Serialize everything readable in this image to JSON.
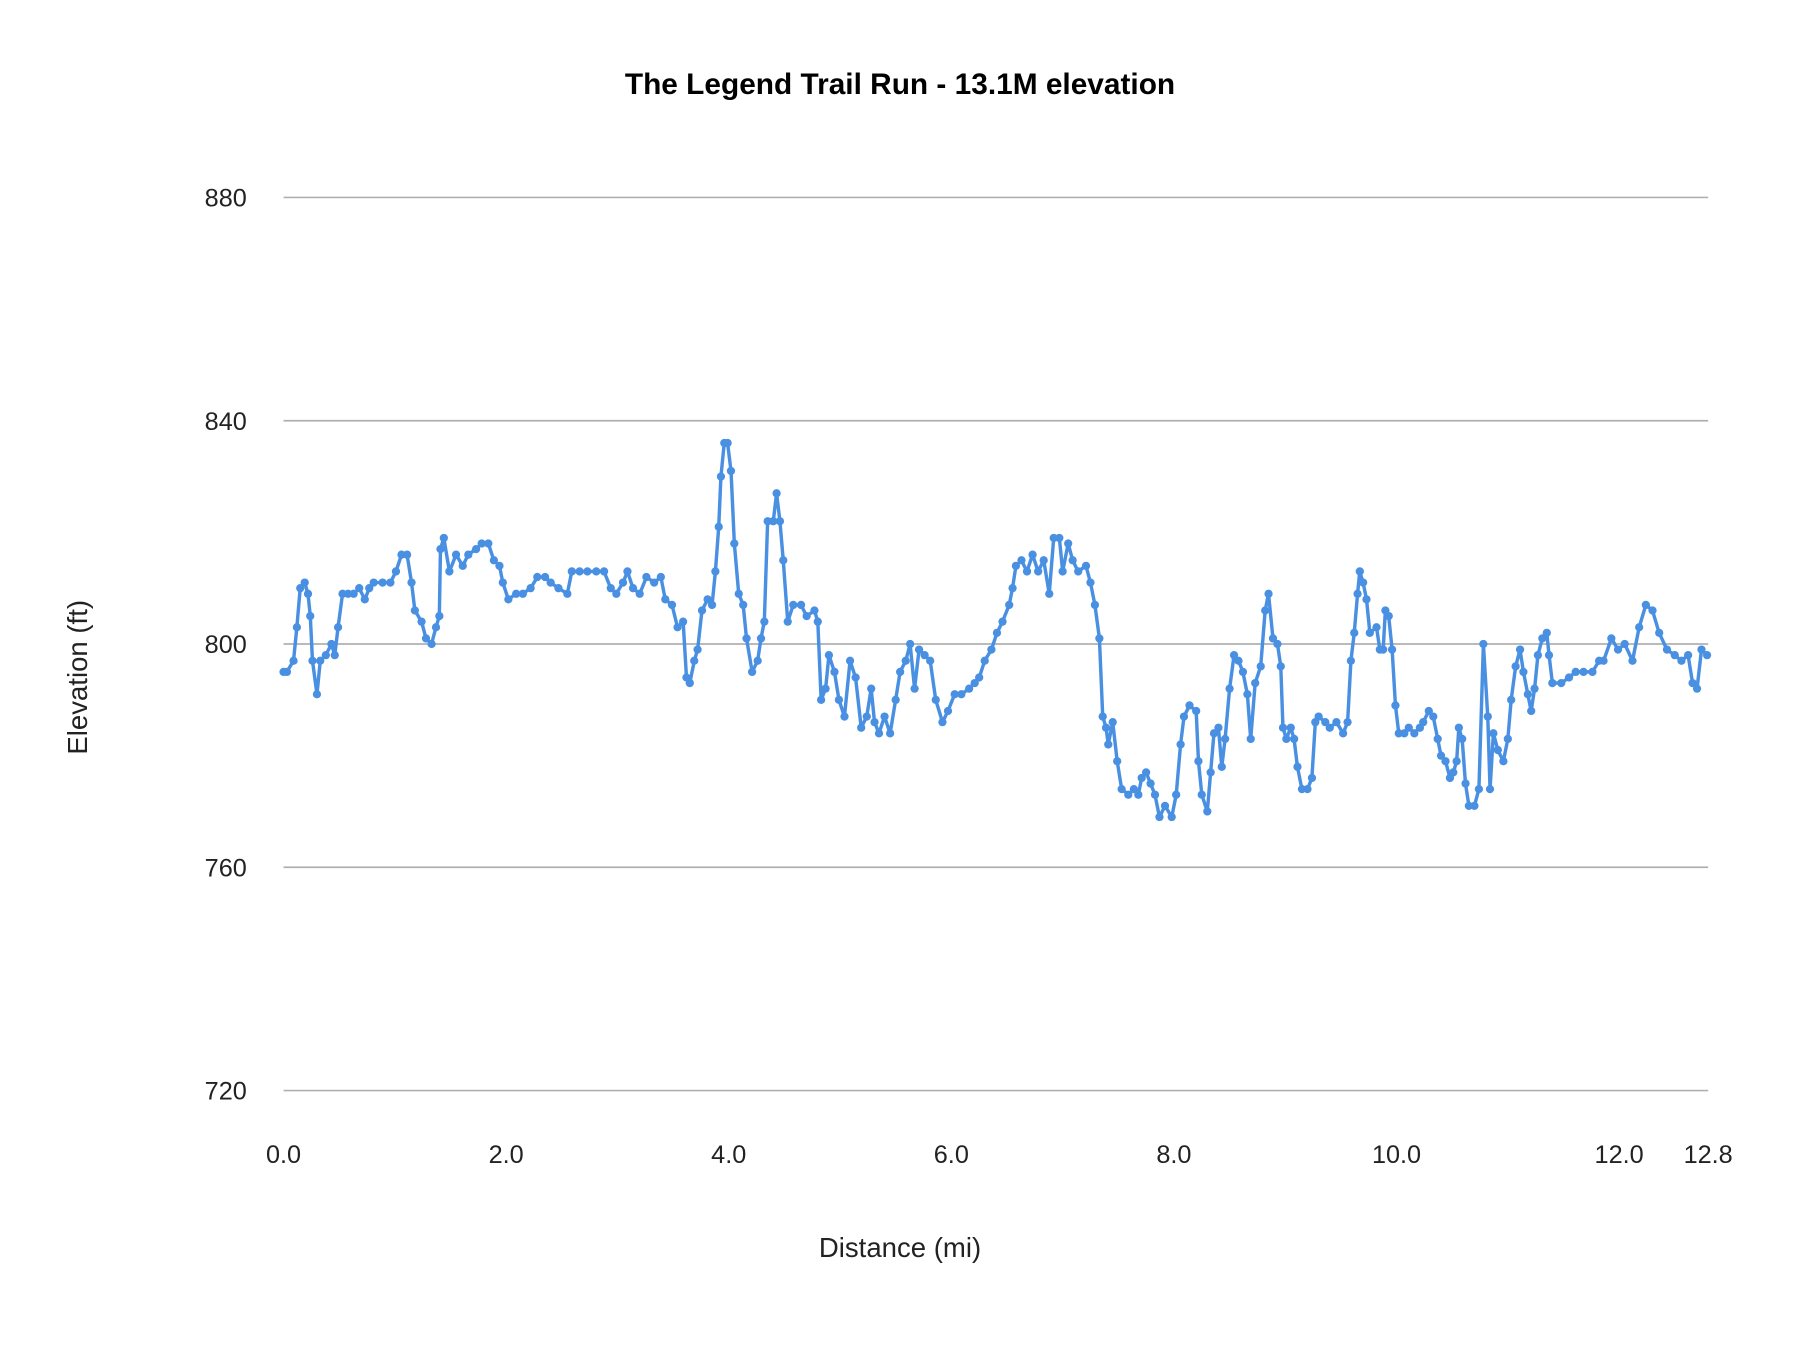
{
  "chart_data": {
    "type": "line",
    "title": "The Legend Trail Run - 13.1M elevation",
    "xlabel": "Distance (mi)",
    "ylabel": "Elevation (ft)",
    "xlim": [
      0,
      12.8
    ],
    "ylim": [
      720,
      880
    ],
    "x_ticks": [
      "0.0",
      "2.0",
      "4.0",
      "6.0",
      "8.0",
      "10.0",
      "12.0",
      "12.8"
    ],
    "x_tick_values": [
      0,
      2,
      4,
      6,
      8,
      10,
      12,
      12.8
    ],
    "y_ticks": [
      "720",
      "760",
      "800",
      "840",
      "880"
    ],
    "y_tick_values": [
      720,
      760,
      800,
      840,
      880
    ],
    "grid": "horizontal",
    "legend": "none",
    "color": "#4a90e2",
    "markers": true,
    "series": [
      {
        "x": [
          0.0,
          0.03,
          0.09,
          0.12,
          0.15,
          0.19,
          0.22,
          0.24,
          0.26,
          0.3,
          0.33,
          0.38,
          0.43,
          0.46,
          0.49,
          0.53,
          0.58,
          0.63,
          0.68,
          0.73,
          0.77,
          0.81,
          0.89,
          0.96,
          1.01,
          1.06,
          1.11,
          1.15,
          1.18,
          1.24,
          1.28,
          1.33,
          1.37,
          1.4,
          1.41,
          1.44,
          1.49,
          1.55,
          1.61,
          1.66,
          1.73,
          1.78,
          1.84,
          1.89,
          1.94,
          1.97,
          2.02,
          2.09,
          2.15,
          2.22,
          2.28,
          2.35,
          2.4,
          2.47,
          2.55,
          2.59,
          2.66,
          2.73,
          2.81,
          2.88,
          2.94,
          2.99,
          3.05,
          3.09,
          3.14,
          3.2,
          3.26,
          3.33,
          3.39,
          3.43,
          3.49,
          3.54,
          3.59,
          3.62,
          3.65,
          3.69,
          3.72,
          3.76,
          3.81,
          3.85,
          3.88,
          3.91,
          3.93,
          3.96,
          3.99,
          4.02,
          4.05,
          4.09,
          4.13,
          4.16,
          4.21,
          4.26,
          4.29,
          4.32,
          4.35,
          4.4,
          4.43,
          4.46,
          4.49,
          4.53,
          4.58,
          4.65,
          4.7,
          4.77,
          4.8,
          4.83,
          4.87,
          4.9,
          4.95,
          4.99,
          5.04,
          5.09,
          5.14,
          5.19,
          5.24,
          5.28,
          5.31,
          5.35,
          5.4,
          5.45,
          5.5,
          5.54,
          5.59,
          5.63,
          5.67,
          5.71,
          5.76,
          5.81,
          5.86,
          5.92,
          5.97,
          6.03,
          6.09,
          6.16,
          6.21,
          6.25,
          6.3,
          6.36,
          6.41,
          6.46,
          6.52,
          6.55,
          6.58,
          6.63,
          6.68,
          6.73,
          6.78,
          6.83,
          6.88,
          6.92,
          6.97,
          7.0,
          7.05,
          7.09,
          7.14,
          7.21,
          7.25,
          7.29,
          7.33,
          7.36,
          7.39,
          7.41,
          7.45,
          7.49,
          7.53,
          7.59,
          7.64,
          7.68,
          7.71,
          7.75,
          7.79,
          7.83,
          7.87,
          7.92,
          7.98,
          8.02,
          8.06,
          8.09,
          8.14,
          8.2,
          8.22,
          8.25,
          8.3,
          8.33,
          8.36,
          8.4,
          8.43,
          8.46,
          8.5,
          8.54,
          8.58,
          8.62,
          8.66,
          8.69,
          8.73,
          8.78,
          8.82,
          8.85,
          8.89,
          8.93,
          8.96,
          8.98,
          9.01,
          9.05,
          9.08,
          9.11,
          9.15,
          9.2,
          9.24,
          9.27,
          9.3,
          9.36,
          9.4,
          9.46,
          9.52,
          9.56,
          9.59,
          9.62,
          9.65,
          9.67,
          9.7,
          9.73,
          9.76,
          9.82,
          9.85,
          9.88,
          9.9,
          9.93,
          9.96,
          9.99,
          10.02,
          10.07,
          10.11,
          10.16,
          10.21,
          10.24,
          10.29,
          10.33,
          10.37,
          10.4,
          10.44,
          10.48,
          10.51,
          10.54,
          10.56,
          10.59,
          10.62,
          10.65,
          10.7,
          10.74,
          10.78,
          10.82,
          10.84,
          10.87,
          10.91,
          10.96,
          11.0,
          11.03,
          11.07,
          11.11,
          11.14,
          11.18,
          11.21,
          11.24,
          11.27,
          11.31,
          11.35,
          11.37,
          11.4,
          11.48,
          11.55,
          11.61,
          11.68,
          11.76,
          11.82,
          11.86,
          11.93,
          11.99,
          12.05,
          12.12,
          12.18,
          12.24,
          12.3,
          12.36,
          12.43,
          12.5,
          12.56,
          12.62,
          12.66,
          12.7,
          12.74,
          12.79
        ],
        "y": [
          795,
          795,
          797,
          803,
          810,
          811,
          809,
          805,
          797,
          791,
          797,
          798,
          800,
          798,
          803,
          809,
          809,
          809,
          810,
          808,
          810,
          811,
          811,
          811,
          813,
          816,
          816,
          811,
          806,
          804,
          801,
          800,
          803,
          805,
          817,
          819,
          813,
          816,
          814,
          816,
          817,
          818,
          818,
          815,
          814,
          811,
          808,
          809,
          809,
          810,
          812,
          812,
          811,
          810,
          809,
          813,
          813,
          813,
          813,
          813,
          810,
          809,
          811,
          813,
          810,
          809,
          812,
          811,
          812,
          808,
          807,
          803,
          804,
          794,
          793,
          797,
          799,
          806,
          808,
          807,
          813,
          821,
          830,
          836,
          836,
          831,
          818,
          809,
          807,
          801,
          795,
          797,
          801,
          804,
          822,
          822,
          827,
          822,
          815,
          804,
          807,
          807,
          805,
          806,
          804,
          790,
          792,
          798,
          795,
          790,
          787,
          797,
          794,
          785,
          787,
          792,
          786,
          784,
          787,
          784,
          790,
          795,
          797,
          800,
          792,
          799,
          798,
          797,
          790,
          786,
          788,
          791,
          791,
          792,
          793,
          794,
          797,
          799,
          802,
          804,
          807,
          810,
          814,
          815,
          813,
          816,
          813,
          815,
          809,
          819,
          819,
          813,
          818,
          815,
          813,
          814,
          811,
          807,
          801,
          787,
          785,
          782,
          786,
          779,
          774,
          773,
          774,
          773,
          776,
          777,
          775,
          773,
          769,
          771,
          769,
          773,
          782,
          787,
          789,
          788,
          779,
          773,
          770,
          777,
          784,
          785,
          778,
          783,
          792,
          798,
          797,
          795,
          791,
          783,
          793,
          796,
          806,
          809,
          801,
          800,
          796,
          785,
          783,
          785,
          783,
          778,
          774,
          774,
          776,
          786,
          787,
          786,
          785,
          786,
          784,
          786,
          797,
          802,
          809,
          813,
          811,
          808,
          802,
          803,
          799,
          799,
          806,
          805,
          799,
          789,
          784,
          784,
          785,
          784,
          785,
          786,
          788,
          787,
          783,
          780,
          779,
          776,
          777,
          779,
          785,
          783,
          775,
          771,
          771,
          774,
          800,
          787,
          774,
          784,
          781,
          779,
          783,
          790,
          796,
          799,
          795,
          791,
          788,
          792,
          798,
          801,
          802,
          798,
          793,
          793,
          794,
          795,
          795,
          795,
          797,
          797,
          801,
          799,
          800,
          797,
          803,
          807,
          806,
          802,
          799,
          798,
          797,
          798,
          793,
          792,
          799,
          798
        ]
      }
    ]
  }
}
